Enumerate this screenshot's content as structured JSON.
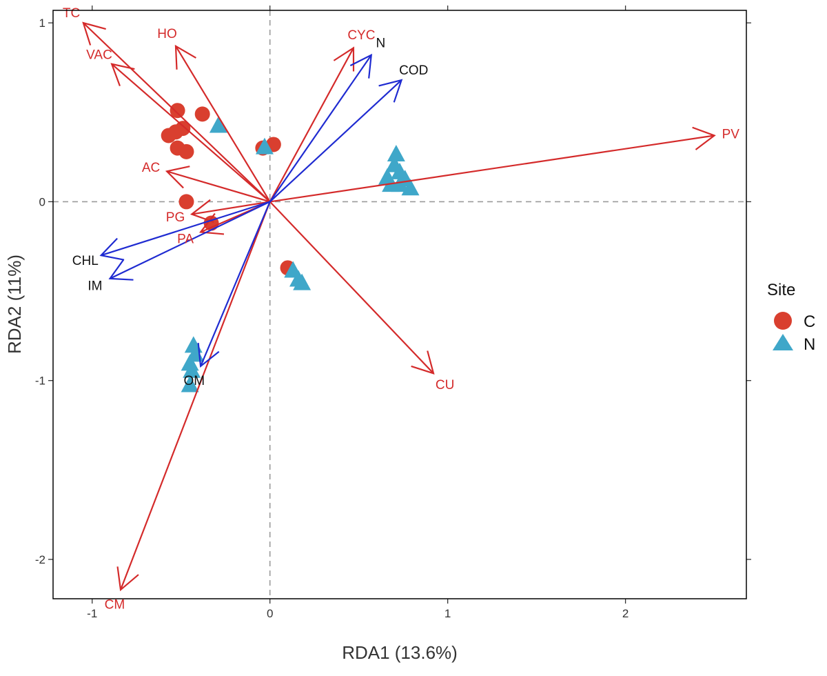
{
  "chart_data": {
    "type": "scatter",
    "subtype": "rda-biplot",
    "title": "",
    "xlabel": "RDA1 (13.6%)",
    "ylabel": "RDA2 (11%)",
    "xlim": [
      -1.22,
      2.68
    ],
    "ylim": [
      -2.22,
      1.07
    ],
    "xticks": [
      -1,
      0,
      1,
      2
    ],
    "yticks": [
      -2,
      -1,
      0,
      1
    ],
    "xtick_labels": [
      "-1",
      "0",
      "1",
      "2"
    ],
    "ytick_labels": [
      "-2",
      "-1",
      "0",
      "1"
    ],
    "grid": false,
    "zero_lines": true,
    "legend": {
      "title": "Site",
      "position": "right",
      "entries": [
        {
          "label": "C",
          "shape": "circle",
          "color": "#d93f2f"
        },
        {
          "label": "N",
          "shape": "triangle",
          "color": "#3fa7c9"
        }
      ]
    },
    "arrow_groups": [
      {
        "name": "species",
        "color": "#d42a2a",
        "label_color": "#d42a2a",
        "arrows": [
          {
            "label": "TC",
            "x": -1.05,
            "y": 1.0
          },
          {
            "label": "VAC",
            "x": -0.89,
            "y": 0.77
          },
          {
            "label": "HO",
            "x": -0.53,
            "y": 0.87
          },
          {
            "label": "CYC",
            "x": 0.47,
            "y": 0.86
          },
          {
            "label": "PV",
            "x": 2.5,
            "y": 0.37
          },
          {
            "label": "AC",
            "x": -0.58,
            "y": 0.17
          },
          {
            "label": "PG",
            "x": -0.44,
            "y": -0.07
          },
          {
            "label": "PA",
            "x": -0.39,
            "y": -0.17
          },
          {
            "label": "CU",
            "x": 0.92,
            "y": -0.96
          },
          {
            "label": "CM",
            "x": -0.84,
            "y": -2.17
          }
        ]
      },
      {
        "name": "environment",
        "color": "#1f2bd1",
        "label_color": "#111111",
        "arrows": [
          {
            "label": "N",
            "x": 0.57,
            "y": 0.82
          },
          {
            "label": "COD",
            "x": 0.74,
            "y": 0.68
          },
          {
            "label": "CHL",
            "x": -0.95,
            "y": -0.3
          },
          {
            "label": "IM",
            "x": -0.9,
            "y": -0.43
          },
          {
            "label": "OM",
            "x": -0.39,
            "y": -0.92
          }
        ]
      }
    ],
    "series": [
      {
        "name": "C",
        "shape": "circle",
        "color": "#d93f2f",
        "points": [
          {
            "x": -0.52,
            "y": 0.51
          },
          {
            "x": -0.38,
            "y": 0.49
          },
          {
            "x": -0.49,
            "y": 0.41
          },
          {
            "x": -0.53,
            "y": 0.39
          },
          {
            "x": -0.57,
            "y": 0.37
          },
          {
            "x": -0.52,
            "y": 0.3
          },
          {
            "x": -0.47,
            "y": 0.28
          },
          {
            "x": -0.04,
            "y": 0.3
          },
          {
            "x": 0.02,
            "y": 0.32
          },
          {
            "x": -0.47,
            "y": 0.0
          },
          {
            "x": -0.33,
            "y": -0.12
          },
          {
            "x": 0.1,
            "y": -0.37
          }
        ]
      },
      {
        "name": "N",
        "shape": "triangle",
        "color": "#3fa7c9",
        "points": [
          {
            "x": -0.29,
            "y": 0.42
          },
          {
            "x": -0.03,
            "y": 0.3
          },
          {
            "x": 0.71,
            "y": 0.26
          },
          {
            "x": 0.7,
            "y": 0.2
          },
          {
            "x": 0.73,
            "y": 0.16
          },
          {
            "x": 0.66,
            "y": 0.13
          },
          {
            "x": 0.76,
            "y": 0.12
          },
          {
            "x": 0.68,
            "y": 0.09
          },
          {
            "x": 0.79,
            "y": 0.07
          },
          {
            "x": 0.73,
            "y": 0.09
          },
          {
            "x": 0.13,
            "y": -0.39
          },
          {
            "x": 0.16,
            "y": -0.44
          },
          {
            "x": 0.18,
            "y": -0.46
          },
          {
            "x": -0.43,
            "y": -0.81
          },
          {
            "x": -0.42,
            "y": -0.86
          },
          {
            "x": -0.45,
            "y": -0.91
          },
          {
            "x": -0.44,
            "y": -0.95
          },
          {
            "x": -0.45,
            "y": -1.03
          }
        ]
      }
    ]
  }
}
